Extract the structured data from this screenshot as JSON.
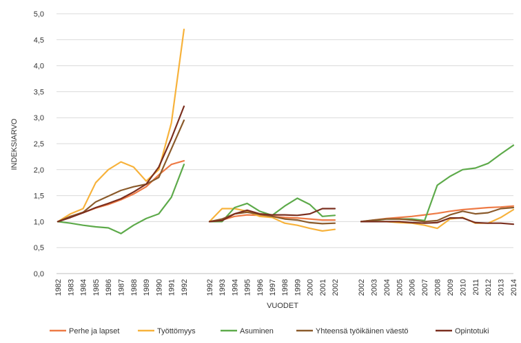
{
  "chart_data": {
    "type": "line",
    "xlabel": "VUODET",
    "ylabel": "INDEKSIARVO",
    "ylim": [
      0,
      5
    ],
    "y_ticks": [
      "0,0",
      "0,5",
      "1,0",
      "1,5",
      "2,0",
      "2,5",
      "3,0",
      "3,5",
      "4,0",
      "4,5",
      "5,0"
    ],
    "grid": true,
    "legend_position": "bottom",
    "segments": [
      {
        "categories": [
          "1982",
          "1983",
          "1984",
          "1985",
          "1986",
          "1987",
          "1988",
          "1989",
          "1990",
          "1991",
          "1992"
        ],
        "series": [
          {
            "name": "Perhe ja lapset",
            "values": [
              1.0,
              1.1,
              1.17,
              1.26,
              1.33,
              1.42,
              1.53,
              1.67,
              1.9,
              2.1,
              2.17
            ]
          },
          {
            "name": "Työttömyys",
            "values": [
              1.0,
              1.15,
              1.25,
              1.75,
              2.0,
              2.15,
              2.05,
              1.78,
              2.0,
              2.9,
              4.7
            ]
          },
          {
            "name": "Asuminen",
            "values": [
              1.0,
              0.97,
              0.93,
              0.9,
              0.88,
              0.77,
              0.93,
              1.06,
              1.15,
              1.47,
              2.1
            ]
          },
          {
            "name": "Yhteensä työikäinen väestö",
            "values": [
              1.0,
              1.1,
              1.18,
              1.38,
              1.49,
              1.6,
              1.67,
              1.72,
              1.85,
              2.4,
              2.95
            ]
          },
          {
            "name": "Opintotuki",
            "values": [
              1.0,
              1.08,
              1.17,
              1.27,
              1.35,
              1.44,
              1.57,
              1.72,
              2.05,
              2.6,
              3.22
            ]
          }
        ]
      },
      {
        "categories": [
          "1992",
          "1993",
          "1994",
          "1995",
          "1996",
          "1997",
          "1998",
          "1999",
          "2000",
          "2001",
          "2002"
        ],
        "series": [
          {
            "name": "Perhe ja lapset",
            "values": [
              1.0,
              1.03,
              1.1,
              1.13,
              1.12,
              1.1,
              1.08,
              1.07,
              1.05,
              1.03,
              1.03
            ]
          },
          {
            "name": "Työttömyys",
            "values": [
              1.0,
              1.25,
              1.25,
              1.2,
              1.1,
              1.08,
              0.97,
              0.93,
              0.87,
              0.82,
              0.85
            ]
          },
          {
            "name": "Asuminen",
            "values": [
              1.0,
              1.0,
              1.27,
              1.35,
              1.2,
              1.12,
              1.3,
              1.45,
              1.33,
              1.1,
              1.12
            ]
          },
          {
            "name": "Yhteensä työikäinen väestö",
            "values": [
              1.0,
              1.05,
              1.15,
              1.18,
              1.14,
              1.1,
              1.05,
              1.03,
              0.98,
              0.96,
              0.97
            ]
          },
          {
            "name": "Opintotuki",
            "values": [
              1.0,
              1.02,
              1.15,
              1.22,
              1.15,
              1.13,
              1.13,
              1.12,
              1.15,
              1.25,
              1.25
            ]
          }
        ]
      },
      {
        "categories": [
          "2002",
          "2003",
          "2004",
          "2005",
          "2006",
          "2007",
          "2008",
          "2009",
          "2010",
          "2011",
          "2012",
          "2013",
          "2014"
        ],
        "series": [
          {
            "name": "Perhe ja lapset",
            "values": [
              1.0,
              1.03,
              1.06,
              1.08,
              1.1,
              1.13,
              1.16,
              1.2,
              1.23,
              1.25,
              1.27,
              1.28,
              1.3
            ]
          },
          {
            "name": "Työttömyys",
            "values": [
              1.0,
              1.0,
              1.0,
              0.98,
              0.97,
              0.93,
              0.87,
              1.05,
              1.08,
              0.97,
              0.97,
              1.08,
              1.23
            ]
          },
          {
            "name": "Asuminen",
            "values": [
              1.0,
              1.02,
              1.05,
              1.05,
              1.05,
              1.02,
              1.7,
              1.87,
              2.0,
              2.03,
              2.12,
              2.3,
              2.47
            ]
          },
          {
            "name": "Yhteensä työikäinen väestö",
            "values": [
              1.0,
              1.03,
              1.05,
              1.05,
              1.03,
              1.0,
              1.02,
              1.13,
              1.2,
              1.15,
              1.17,
              1.25,
              1.27
            ]
          },
          {
            "name": "Opintotuki",
            "values": [
              1.0,
              1.0,
              1.0,
              1.0,
              0.98,
              0.97,
              0.98,
              1.07,
              1.07,
              0.98,
              0.97,
              0.97,
              0.95
            ]
          }
        ]
      }
    ],
    "legend": [
      {
        "name": "Perhe ja lapset",
        "color": "#EE7A45"
      },
      {
        "name": "Työttömyys",
        "color": "#F7B23B"
      },
      {
        "name": "Asuminen",
        "color": "#5DAA4A"
      },
      {
        "name": "Yhteensä työikäinen väestö",
        "color": "#8A5A2B"
      },
      {
        "name": "Opintotuki",
        "color": "#7A2E1E"
      }
    ],
    "colors": {
      "grid": "#d9d9d9",
      "axis": "#bfbfbf",
      "text": "#333333"
    }
  }
}
